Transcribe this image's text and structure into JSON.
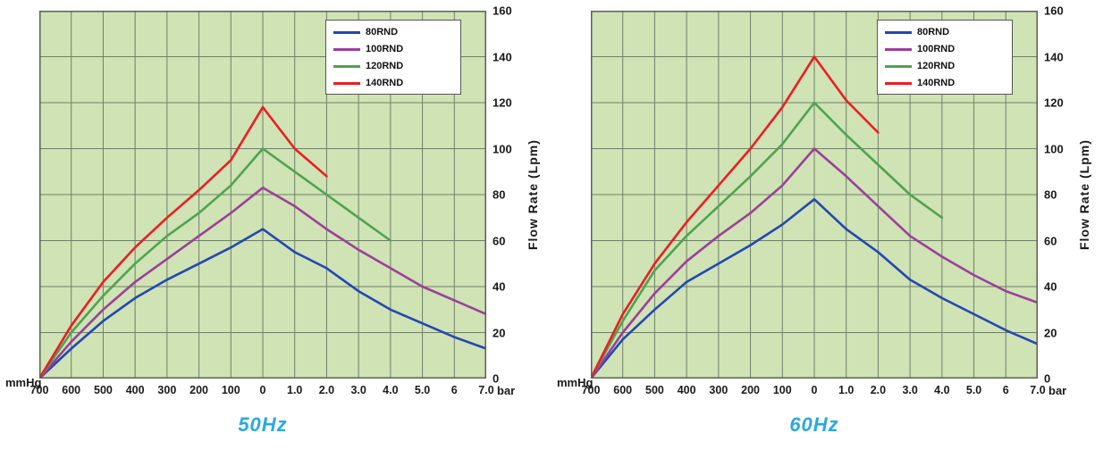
{
  "chart_data": [
    {
      "type": "line",
      "title": "50Hz",
      "title_color": "#29a8e0",
      "ylabel": "Flow Rate (Lpm)",
      "ylim": [
        0,
        160
      ],
      "y_ticks": [
        0,
        20,
        40,
        60,
        80,
        100,
        120,
        140,
        160
      ],
      "x_left_unit": "mmHg",
      "x_right_unit": "bar",
      "x_ticks": [
        "700",
        "600",
        "500",
        "400",
        "300",
        "200",
        "100",
        "0",
        "1.0",
        "2.0",
        "3.0",
        "4.0",
        "5.0",
        "6",
        "7.0"
      ],
      "plot_bg": "#cfe3b4",
      "grid_color": "#6f7f66",
      "grid": true,
      "legend_position": "top-right",
      "series": [
        {
          "name": "80RND",
          "color": "#2446b4",
          "points": [
            [
              0,
              0
            ],
            [
              1,
              13
            ],
            [
              2,
              25
            ],
            [
              3,
              35
            ],
            [
              4,
              43
            ],
            [
              5,
              50
            ],
            [
              6,
              57
            ],
            [
              7,
              65
            ],
            [
              8,
              55
            ],
            [
              9,
              48
            ],
            [
              10,
              38
            ],
            [
              11,
              30
            ],
            [
              12,
              24
            ],
            [
              13,
              18
            ],
            [
              14,
              13
            ]
          ]
        },
        {
          "name": "100RND",
          "color": "#9b3f9b",
          "points": [
            [
              0,
              0
            ],
            [
              1,
              16
            ],
            [
              2,
              30
            ],
            [
              3,
              42
            ],
            [
              4,
              52
            ],
            [
              5,
              62
            ],
            [
              6,
              72
            ],
            [
              7,
              83
            ],
            [
              8,
              75
            ],
            [
              9,
              65
            ],
            [
              10,
              56
            ],
            [
              11,
              48
            ],
            [
              12,
              40
            ],
            [
              13,
              34
            ],
            [
              14,
              28
            ]
          ]
        },
        {
          "name": "120RND",
          "color": "#4ea352",
          "points": [
            [
              0,
              0
            ],
            [
              1,
              20
            ],
            [
              2,
              36
            ],
            [
              3,
              50
            ],
            [
              4,
              62
            ],
            [
              5,
              72
            ],
            [
              6,
              84
            ],
            [
              7,
              100
            ],
            [
              8,
              90
            ],
            [
              9,
              80
            ],
            [
              10,
              70
            ],
            [
              11,
              60
            ]
          ]
        },
        {
          "name": "140RND",
          "color": "#ed1c24",
          "points": [
            [
              0,
              0
            ],
            [
              1,
              23
            ],
            [
              2,
              42
            ],
            [
              3,
              57
            ],
            [
              4,
              70
            ],
            [
              5,
              82
            ],
            [
              6,
              95
            ],
            [
              7,
              118
            ],
            [
              8,
              100
            ],
            [
              9,
              88
            ]
          ]
        }
      ]
    },
    {
      "type": "line",
      "title": "60Hz",
      "title_color": "#29a8e0",
      "ylabel": "Flow Rate (Lpm)",
      "ylim": [
        0,
        160
      ],
      "y_ticks": [
        0,
        20,
        40,
        60,
        80,
        100,
        120,
        140,
        160
      ],
      "x_left_unit": "mmHg",
      "x_right_unit": "bar",
      "x_ticks": [
        "700",
        "600",
        "500",
        "400",
        "300",
        "200",
        "100",
        "0",
        "1.0",
        "2.0",
        "3.0",
        "4.0",
        "5.0",
        "6",
        "7.0"
      ],
      "plot_bg": "#cfe3b4",
      "grid_color": "#6f7f66",
      "grid": true,
      "legend_position": "top-right",
      "series": [
        {
          "name": "80RND",
          "color": "#2446b4",
          "points": [
            [
              0,
              0
            ],
            [
              1,
              17
            ],
            [
              2,
              30
            ],
            [
              3,
              42
            ],
            [
              4,
              50
            ],
            [
              5,
              58
            ],
            [
              6,
              67
            ],
            [
              7,
              78
            ],
            [
              8,
              65
            ],
            [
              9,
              55
            ],
            [
              10,
              43
            ],
            [
              11,
              35
            ],
            [
              12,
              28
            ],
            [
              13,
              21
            ],
            [
              14,
              15
            ]
          ]
        },
        {
          "name": "100RND",
          "color": "#9b3f9b",
          "points": [
            [
              0,
              0
            ],
            [
              1,
              20
            ],
            [
              2,
              37
            ],
            [
              3,
              51
            ],
            [
              4,
              62
            ],
            [
              5,
              72
            ],
            [
              6,
              84
            ],
            [
              7,
              100
            ],
            [
              8,
              88
            ],
            [
              9,
              75
            ],
            [
              10,
              62
            ],
            [
              11,
              53
            ],
            [
              12,
              45
            ],
            [
              13,
              38
            ],
            [
              14,
              33
            ]
          ]
        },
        {
          "name": "120RND",
          "color": "#4ea352",
          "points": [
            [
              0,
              0
            ],
            [
              1,
              25
            ],
            [
              2,
              47
            ],
            [
              3,
              62
            ],
            [
              4,
              75
            ],
            [
              5,
              88
            ],
            [
              6,
              102
            ],
            [
              7,
              120
            ],
            [
              8,
              106
            ],
            [
              9,
              93
            ],
            [
              10,
              80
            ],
            [
              11,
              70
            ]
          ]
        },
        {
          "name": "140RND",
          "color": "#ed1c24",
          "points": [
            [
              0,
              0
            ],
            [
              1,
              28
            ],
            [
              2,
              50
            ],
            [
              3,
              68
            ],
            [
              4,
              84
            ],
            [
              5,
              100
            ],
            [
              6,
              118
            ],
            [
              7,
              140
            ],
            [
              8,
              121
            ],
            [
              9,
              107
            ]
          ]
        }
      ]
    }
  ]
}
